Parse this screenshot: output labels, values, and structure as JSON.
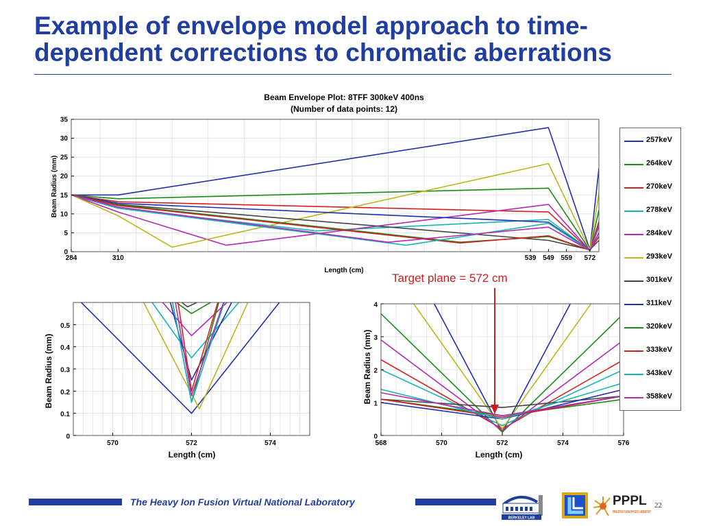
{
  "slide": {
    "title": "Example of envelope model approach to time-dependent corrections to chromatic aberrations",
    "annotation": "Target plane = 572 cm",
    "footer": "The Heavy Ion Fusion Virtual National Laboratory",
    "page_number": "22",
    "logos": [
      "BERKELEY LAB",
      "PPPL",
      "PRINCETON PLASMA PHYSICS LABORATORY"
    ]
  },
  "colors": {
    "title": "#1f3e9e",
    "annotation": "#d01c1c",
    "footer_bar": "#1f3e9e"
  },
  "legend": [
    {
      "label": "257keV",
      "color": "#1f2fb0"
    },
    {
      "label": "264keV",
      "color": "#1a8a1a"
    },
    {
      "label": "270keV",
      "color": "#d42020"
    },
    {
      "label": "278keV",
      "color": "#1ab3b3"
    },
    {
      "label": "284keV",
      "color": "#b32ab3"
    },
    {
      "label": "293keV",
      "color": "#b8b81a"
    },
    {
      "label": "301keV",
      "color": "#444444"
    },
    {
      "label": "311keV",
      "color": "#1f2fb0"
    },
    {
      "label": "320keV",
      "color": "#1a8a1a"
    },
    {
      "label": "333keV",
      "color": "#d42020"
    },
    {
      "label": "343keV",
      "color": "#1ab3b3"
    },
    {
      "label": "358keV",
      "color": "#b32ab3"
    }
  ],
  "chart_data": [
    {
      "type": "line",
      "title": "Beam Envelope Plot: 8TFF 300keV 400ns",
      "subtitle": "(Number of data points: 12)",
      "xlabel": "Length (cm)",
      "ylabel": "Beam Radius (mm)",
      "xlim": [
        284,
        577
      ],
      "ylim": [
        0,
        35
      ],
      "xticks": [
        284,
        310,
        539,
        549,
        559,
        572
      ],
      "yticks": [
        0,
        5,
        10,
        15,
        20,
        25,
        30,
        35
      ],
      "grid": true,
      "series": [
        {
          "name": "257keV",
          "color": "#1f2fb0",
          "x": [
            284,
            310,
            549,
            572,
            577
          ],
          "y": [
            15,
            15,
            32.8,
            0.5,
            22
          ]
        },
        {
          "name": "264keV",
          "color": "#1a8a1a",
          "x": [
            284,
            310,
            549,
            572,
            577
          ],
          "y": [
            15,
            14,
            16.8,
            0.4,
            11
          ]
        },
        {
          "name": "270keV",
          "color": "#d42020",
          "x": [
            284,
            310,
            549,
            572,
            577
          ],
          "y": [
            15,
            13.2,
            10.5,
            0.3,
            8
          ]
        },
        {
          "name": "278keV",
          "color": "#1ab3b3",
          "x": [
            284,
            310,
            420,
            549,
            572,
            577
          ],
          "y": [
            15,
            11.5,
            5.5,
            8.5,
            0.3,
            6.5
          ]
        },
        {
          "name": "284keV",
          "color": "#b32ab3",
          "x": [
            284,
            310,
            370,
            549,
            572,
            577
          ],
          "y": [
            15,
            10.5,
            1.7,
            12.5,
            0.3,
            7
          ]
        },
        {
          "name": "293keV",
          "color": "#b8b81a",
          "x": [
            284,
            310,
            340,
            549,
            572,
            577
          ],
          "y": [
            15,
            9.5,
            1.2,
            23.3,
            0.4,
            15.5
          ]
        },
        {
          "name": "301keV",
          "color": "#444444",
          "x": [
            284,
            310,
            549,
            572,
            577
          ],
          "y": [
            15,
            12.5,
            3,
            0.5,
            3
          ]
        },
        {
          "name": "311keV",
          "color": "#1f2fb0",
          "x": [
            284,
            310,
            549,
            572,
            577
          ],
          "y": [
            15,
            12.8,
            7.8,
            0.4,
            4
          ]
        },
        {
          "name": "320keV",
          "color": "#1a8a1a",
          "x": [
            284,
            310,
            500,
            549,
            572,
            577
          ],
          "y": [
            15,
            12.4,
            2.5,
            4,
            0.4,
            4
          ]
        },
        {
          "name": "333keV",
          "color": "#d42020",
          "x": [
            284,
            310,
            500,
            549,
            572,
            577
          ],
          "y": [
            15,
            12.2,
            2.3,
            4.2,
            0.4,
            4
          ]
        },
        {
          "name": "343keV",
          "color": "#1ab3b3",
          "x": [
            284,
            310,
            470,
            549,
            572,
            577
          ],
          "y": [
            15,
            11.5,
            1.7,
            7.5,
            0.3,
            5
          ]
        },
        {
          "name": "358keV",
          "color": "#b32ab3",
          "x": [
            284,
            310,
            460,
            549,
            572,
            577
          ],
          "y": [
            15,
            11.8,
            2.5,
            6.5,
            0.3,
            5
          ]
        }
      ]
    },
    {
      "type": "line",
      "title": "",
      "xlabel": "Length (cm)",
      "ylabel": "Beam Radius (mm)",
      "xlim": [
        569,
        575
      ],
      "ylim": [
        0,
        0.6
      ],
      "xticks": [
        570,
        572,
        574
      ],
      "yticks": [
        0,
        0.1,
        0.2,
        0.3,
        0.4,
        0.5
      ],
      "grid": true,
      "series": [
        {
          "name": "257keV",
          "color": "#1f2fb0",
          "x": [
            569.2,
            572,
            574.9
          ],
          "y": [
            0.6,
            0.1,
            0.75
          ]
        },
        {
          "name": "264keV",
          "color": "#1a8a1a",
          "x": [
            569.3,
            572,
            574.9
          ],
          "y": [
            0.9,
            0.55,
            0.85
          ]
        },
        {
          "name": "270keV",
          "color": "#d42020",
          "x": [
            569.6,
            572,
            574.6
          ],
          "y": [
            0.9,
            0.6,
            0.85
          ]
        },
        {
          "name": "278keV",
          "color": "#1ab3b3",
          "x": [
            569.8,
            572,
            574.4
          ],
          "y": [
            0.9,
            0.35,
            0.85
          ]
        },
        {
          "name": "284keV",
          "color": "#b32ab3",
          "x": [
            569.8,
            572,
            574.4
          ],
          "y": [
            0.9,
            0.45,
            0.85
          ]
        },
        {
          "name": "293keV",
          "color": "#b8b81a",
          "x": [
            569.9,
            572.2,
            574.2
          ],
          "y": [
            0.9,
            0.12,
            0.9
          ]
        },
        {
          "name": "301keV",
          "color": "#444444",
          "x": [
            569.6,
            571.9,
            574.5
          ],
          "y": [
            0.9,
            0.58,
            0.8
          ]
        },
        {
          "name": "311keV",
          "color": "#1f2fb0",
          "x": [
            571.0,
            572,
            573.6
          ],
          "y": [
            0.9,
            0.25,
            0.8
          ]
        },
        {
          "name": "320keV",
          "color": "#1a8a1a",
          "x": [
            571.2,
            572,
            573.0
          ],
          "y": [
            0.9,
            0.15,
            0.8
          ]
        },
        {
          "name": "333keV",
          "color": "#d42020",
          "x": [
            571.4,
            572,
            573.0
          ],
          "y": [
            0.9,
            0.2,
            0.8
          ]
        },
        {
          "name": "343keV",
          "color": "#1ab3b3",
          "x": [
            571.2,
            572,
            573.2
          ],
          "y": [
            0.9,
            0.15,
            0.8
          ]
        },
        {
          "name": "358keV",
          "color": "#b32ab3",
          "x": [
            571.3,
            572,
            573.2
          ],
          "y": [
            0.9,
            0.18,
            0.8
          ]
        }
      ]
    },
    {
      "type": "line",
      "title": "",
      "xlabel": "Length (cm)",
      "ylabel": "Beam Radius (mm)",
      "xlim": [
        568,
        576
      ],
      "ylim": [
        0,
        4
      ],
      "xticks": [
        568,
        570,
        572,
        574,
        576
      ],
      "yticks": [
        0,
        1,
        2,
        3,
        4
      ],
      "grid": true,
      "series": [
        {
          "name": "257keV",
          "color": "#1f2fb0",
          "x": [
            569.7,
            572,
            574.3
          ],
          "y": [
            4.1,
            0.1,
            4.1
          ]
        },
        {
          "name": "264keV",
          "color": "#1a8a1a",
          "x": [
            568,
            572,
            576
          ],
          "y": [
            3.7,
            0.1,
            3.7
          ]
        },
        {
          "name": "270keV",
          "color": "#d42020",
          "x": [
            568,
            572,
            576
          ],
          "y": [
            2.3,
            0.2,
            2.3
          ]
        },
        {
          "name": "278keV",
          "color": "#1ab3b3",
          "x": [
            568,
            572,
            576
          ],
          "y": [
            2.0,
            0.3,
            2.0
          ]
        },
        {
          "name": "284keV",
          "color": "#b32ab3",
          "x": [
            568,
            572,
            576
          ],
          "y": [
            2.9,
            0.15,
            2.9
          ]
        },
        {
          "name": "293keV",
          "color": "#b8b81a",
          "x": [
            569.0,
            572,
            575.0
          ],
          "y": [
            4.1,
            0.2,
            4.1
          ]
        },
        {
          "name": "301keV",
          "color": "#444444",
          "x": [
            568,
            572,
            576
          ],
          "y": [
            1.1,
            0.85,
            1.2
          ]
        },
        {
          "name": "311keV",
          "color": "#1f2fb0",
          "x": [
            568,
            572,
            576
          ],
          "y": [
            1.0,
            0.5,
            1.4
          ]
        },
        {
          "name": "320keV",
          "color": "#1a8a1a",
          "x": [
            568,
            572,
            576
          ],
          "y": [
            1.1,
            0.6,
            1.1
          ]
        },
        {
          "name": "333keV",
          "color": "#d42020",
          "x": [
            568,
            572,
            576
          ],
          "y": [
            1.1,
            0.55,
            1.2
          ]
        },
        {
          "name": "343keV",
          "color": "#1ab3b3",
          "x": [
            568,
            572,
            576
          ],
          "y": [
            1.4,
            0.5,
            1.6
          ]
        },
        {
          "name": "358keV",
          "color": "#b32ab3",
          "x": [
            568,
            572,
            576
          ],
          "y": [
            1.3,
            0.6,
            1.2
          ]
        }
      ]
    }
  ]
}
